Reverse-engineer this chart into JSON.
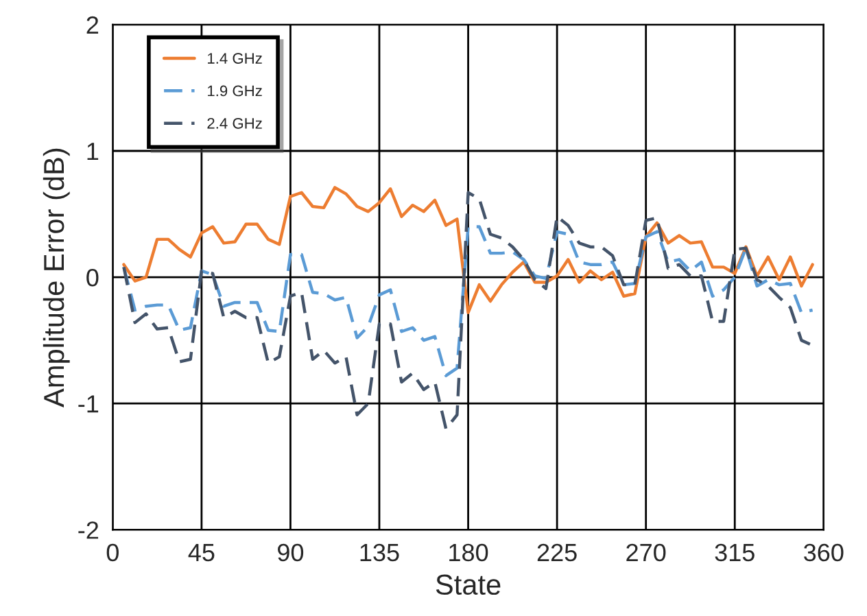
{
  "chart_data": {
    "type": "line",
    "xlabel": "State",
    "ylabel": "Amplitude Error (dB)",
    "x": [
      5.625,
      11.25,
      16.875,
      22.5,
      28.125,
      33.75,
      39.375,
      45,
      50.625,
      56.25,
      61.875,
      67.5,
      73.125,
      78.75,
      84.375,
      90,
      95.625,
      101.25,
      106.875,
      112.5,
      118.125,
      123.75,
      129.375,
      135,
      140.625,
      146.25,
      151.875,
      157.5,
      163.125,
      168.75,
      174.375,
      180,
      185.625,
      191.25,
      196.875,
      202.5,
      208.125,
      213.75,
      219.375,
      225,
      230.625,
      236.25,
      241.875,
      247.5,
      253.125,
      258.75,
      264.375,
      270,
      275.625,
      281.25,
      286.875,
      292.5,
      298.125,
      303.75,
      309.375,
      315,
      320.625,
      326.25,
      331.875,
      337.5,
      343.125,
      348.75,
      354.375
    ],
    "series": [
      {
        "name": "1.4 GHz",
        "color": "#ed7d31",
        "line_style": "solid",
        "values": [
          0.1,
          -0.03,
          0.0,
          0.3,
          0.3,
          0.22,
          0.16,
          0.35,
          0.4,
          0.27,
          0.28,
          0.42,
          0.42,
          0.3,
          0.26,
          0.64,
          0.67,
          0.56,
          0.55,
          0.71,
          0.66,
          0.56,
          0.52,
          0.59,
          0.7,
          0.48,
          0.57,
          0.52,
          0.61,
          0.41,
          0.46,
          -0.28,
          -0.06,
          -0.19,
          -0.06,
          0.04,
          0.12,
          -0.04,
          -0.04,
          0.01,
          0.14,
          -0.04,
          0.05,
          -0.02,
          0.04,
          -0.15,
          -0.13,
          0.32,
          0.43,
          0.27,
          0.33,
          0.27,
          0.28,
          0.08,
          0.08,
          0.03,
          0.24,
          0.01,
          0.16,
          -0.02,
          0.16,
          -0.07,
          0.1
        ]
      },
      {
        "name": "1.9 GHz",
        "color": "#5b9bd5",
        "line_style": "dashed",
        "values": [
          0.08,
          -0.26,
          -0.23,
          -0.22,
          -0.22,
          -0.42,
          -0.4,
          0.05,
          0.02,
          -0.23,
          -0.2,
          -0.2,
          -0.2,
          -0.42,
          -0.43,
          0.18,
          0.18,
          -0.12,
          -0.13,
          -0.18,
          -0.16,
          -0.48,
          -0.39,
          -0.14,
          -0.1,
          -0.43,
          -0.4,
          -0.5,
          -0.47,
          -0.78,
          -0.72,
          0.4,
          0.4,
          0.19,
          0.19,
          0.2,
          0.14,
          0.01,
          -0.01,
          0.36,
          0.34,
          0.12,
          0.1,
          0.1,
          0.12,
          -0.06,
          -0.05,
          0.32,
          0.36,
          0.12,
          0.14,
          0.05,
          0.12,
          -0.15,
          -0.1,
          0.0,
          0.23,
          -0.07,
          -0.02,
          -0.06,
          -0.05,
          -0.28,
          -0.26
        ]
      },
      {
        "name": "2.4 GHz",
        "color": "#44546a",
        "line_style": "dashed",
        "values": [
          0.08,
          -0.36,
          -0.29,
          -0.41,
          -0.4,
          -0.67,
          -0.65,
          0.05,
          0.03,
          -0.32,
          -0.27,
          -0.32,
          -0.32,
          -0.68,
          -0.63,
          -0.15,
          -0.12,
          -0.65,
          -0.58,
          -0.68,
          -0.63,
          -1.09,
          -1.0,
          -0.37,
          -0.37,
          -0.83,
          -0.76,
          -0.89,
          -0.83,
          -1.2,
          -1.09,
          0.67,
          0.62,
          0.34,
          0.31,
          0.24,
          0.14,
          -0.02,
          -0.09,
          0.48,
          0.41,
          0.27,
          0.24,
          0.24,
          0.17,
          -0.06,
          -0.06,
          0.45,
          0.47,
          0.07,
          0.1,
          0.01,
          0.01,
          -0.35,
          -0.35,
          0.22,
          0.23,
          -0.02,
          -0.07,
          -0.16,
          -0.24,
          -0.5,
          -0.54
        ]
      }
    ],
    "xlim": [
      0,
      360
    ],
    "xticks": [
      0,
      45,
      90,
      135,
      180,
      225,
      270,
      315,
      360
    ],
    "ylim": [
      -2,
      2
    ],
    "yticks": [
      -2,
      -1,
      0,
      1,
      2
    ],
    "grid": true,
    "legend": "top left",
    "marker": "none"
  }
}
